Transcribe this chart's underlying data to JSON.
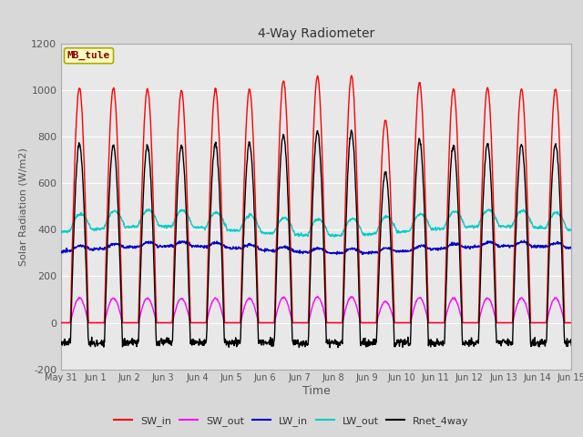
{
  "title": "4-Way Radiometer",
  "xlabel": "Time",
  "ylabel": "Solar Radiation (W/m2)",
  "ylim": [
    -200,
    1200
  ],
  "yticks": [
    -200,
    0,
    200,
    400,
    600,
    800,
    1000,
    1200
  ],
  "annotation_text": "MB_tule",
  "annotation_color": "#8B0000",
  "annotation_bg": "#FFFFC0",
  "annotation_border": "#AAAA00",
  "series_colors": {
    "SW_in": "#FF0000",
    "SW_out": "#FF00FF",
    "LW_in": "#0000CC",
    "LW_out": "#00CCCC",
    "Rnet_4way": "#000000"
  },
  "line_width": 1.0,
  "bg_color": "#D8D8D8",
  "plot_bg_color": "#E8E8E8",
  "grid_color": "#FFFFFF",
  "n_days": 15,
  "x_tick_labels": [
    "May 31",
    "Jun 1",
    "Jun 2",
    "Jun 3",
    "Jun 4",
    "Jun 5",
    "Jun 6",
    "Jun 7",
    "Jun 8",
    "Jun 9",
    "Jun 10",
    "Jun 11",
    "Jun 12",
    "Jun 13",
    "Jun 14",
    "Jun 15"
  ]
}
